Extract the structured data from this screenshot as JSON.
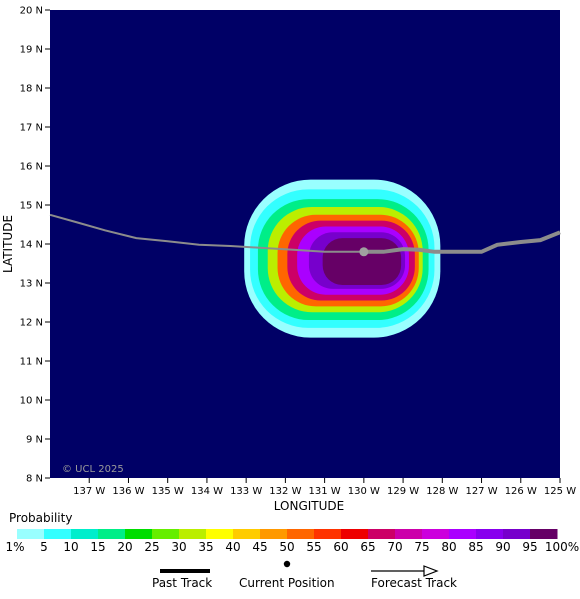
{
  "map": {
    "xlabel": "LONGITUDE",
    "ylabel": "LATITUDE",
    "x_ticks": [
      "137 W",
      "136 W",
      "135 W",
      "134 W",
      "133 W",
      "132 W",
      "131 W",
      "130 W",
      "129 W",
      "128 W",
      "127 W",
      "126 W",
      "125 W"
    ],
    "y_ticks": [
      "8 N",
      "9 N",
      "10 N",
      "11 N",
      "12 N",
      "13 N",
      "14 N",
      "15 N",
      "16 N",
      "17 N",
      "18 N",
      "19 N",
      "20 N"
    ],
    "lon_range": [
      -138.0,
      -125.0
    ],
    "lat_range": [
      8.0,
      20.0
    ],
    "watermark": "© UCL 2025",
    "background_color": "#000066",
    "track_color": "#8c8c8c",
    "current_position": {
      "lon": -130.0,
      "lat": 13.8
    },
    "past_track": [
      [
        -138.0,
        14.75
      ],
      [
        -137.3,
        14.55
      ],
      [
        -136.6,
        14.35
      ],
      [
        -135.8,
        14.15
      ],
      [
        -135.0,
        14.07
      ],
      [
        -134.2,
        13.98
      ],
      [
        -133.4,
        13.95
      ],
      [
        -132.6,
        13.9
      ],
      [
        -131.8,
        13.85
      ],
      [
        -131.0,
        13.8
      ],
      [
        -130.0,
        13.8
      ]
    ],
    "forecast_track": [
      [
        -130.0,
        13.8
      ],
      [
        -129.5,
        13.8
      ],
      [
        -129.0,
        13.87
      ],
      [
        -128.6,
        13.85
      ],
      [
        -128.2,
        13.8
      ],
      [
        -127.6,
        13.8
      ],
      [
        -127.0,
        13.8
      ],
      [
        -126.6,
        13.98
      ],
      [
        -126.0,
        14.05
      ],
      [
        -125.5,
        14.1
      ],
      [
        -125.0,
        14.3
      ]
    ],
    "probability_contours": [
      {
        "p": 1,
        "lon_min": -133.05,
        "lon_max": -128.05,
        "lat_min": 11.6,
        "lat_max": 15.65,
        "center": [
          -130.75,
          13.55
        ]
      },
      {
        "p": 5,
        "lon_min": -132.9,
        "lon_max": -128.2,
        "lat_min": 11.85,
        "lat_max": 15.4,
        "center": [
          -130.65,
          13.55
        ]
      },
      {
        "p": 15,
        "lon_min": -132.7,
        "lon_max": -128.35,
        "lat_min": 12.05,
        "lat_max": 15.15,
        "center": [
          -130.55,
          13.55
        ]
      },
      {
        "p": 30,
        "lon_min": -132.45,
        "lon_max": -128.5,
        "lat_min": 12.25,
        "lat_max": 14.95,
        "center": [
          -130.45,
          13.55
        ]
      },
      {
        "p": 50,
        "lon_min": -132.2,
        "lon_max": -128.6,
        "lat_min": 12.4,
        "lat_max": 14.75,
        "center": [
          -130.35,
          13.55
        ]
      },
      {
        "p": 65,
        "lon_min": -131.95,
        "lon_max": -128.7,
        "lat_min": 12.55,
        "lat_max": 14.6,
        "center": [
          -130.3,
          13.55
        ]
      },
      {
        "p": 80,
        "lon_min": -131.7,
        "lon_max": -128.85,
        "lat_min": 12.7,
        "lat_max": 14.45,
        "center": [
          -130.2,
          13.55
        ]
      },
      {
        "p": 90,
        "lon_min": -131.4,
        "lon_max": -128.95,
        "lat_min": 12.85,
        "lat_max": 14.3,
        "center": [
          -130.05,
          13.55
        ]
      },
      {
        "p": 95,
        "lon_min": -131.05,
        "lon_max": -129.05,
        "lat_min": 12.95,
        "lat_max": 14.15,
        "center": [
          -129.95,
          13.55
        ]
      }
    ]
  },
  "legend": {
    "title": "Probability",
    "labels": [
      "1%",
      "5",
      "10",
      "15",
      "20",
      "25",
      "30",
      "35",
      "40",
      "45",
      "50",
      "55",
      "60",
      "65",
      "70",
      "75",
      "80",
      "85",
      "90",
      "95",
      "100%"
    ],
    "colors": [
      "#99ffff",
      "#33ffff",
      "#00eecc",
      "#00ee88",
      "#00dd00",
      "#66ee00",
      "#bbee00",
      "#ffff00",
      "#ffcc00",
      "#ff9900",
      "#ff6600",
      "#ff3300",
      "#ee0000",
      "#cc0066",
      "#cc00aa",
      "#cc00dd",
      "#aa00ff",
      "#8800ee",
      "#7700cc",
      "#660066"
    ]
  },
  "key": {
    "past_track_label": "Past Track",
    "current_position_label": "Current Position",
    "forecast_track_label": "Forecast Track"
  }
}
